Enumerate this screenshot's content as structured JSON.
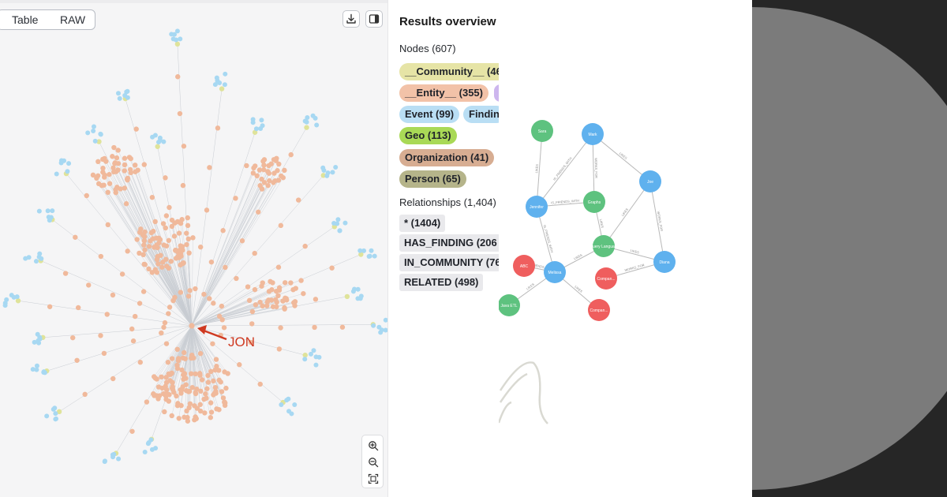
{
  "graph_view": {
    "tabs": [
      {
        "label": "Table"
      },
      {
        "label": "RAW"
      }
    ],
    "toolbar": {
      "download_icon": "download-icon",
      "side_panel_icon": "side-panel-icon"
    },
    "annotation_label": "JON",
    "zoom_controls": {
      "zoom_in_icon": "zoom-in-icon",
      "zoom_out_icon": "zoom-out-icon",
      "fit_icon": "fit-to-screen-icon"
    },
    "colors": {
      "entity": "#f0b99b",
      "community": "#dfe39a",
      "finding": "#a7d8f2",
      "edge": "#c9cdd3",
      "arrow": "#cf3a22"
    }
  },
  "results_overview": {
    "title": "Results overview",
    "nodes_label": "Nodes (607)",
    "node_pills": [
      {
        "label": "__Community__ (46",
        "color": "#e6e4a6"
      },
      {
        "label": "__Entity__ (355)",
        "color": "#f2c2a8"
      },
      {
        "label": "",
        "color": "#cdb6ee"
      },
      {
        "label": "Event (99)",
        "color": "#b9def4"
      },
      {
        "label": "Findin",
        "color": "#b9def4"
      },
      {
        "label": "Geo (113)",
        "color": "#a9d956"
      },
      {
        "label": "Organization (41)",
        "color": "#d7ad92"
      },
      {
        "label": "Person (65)",
        "color": "#b5b48a"
      }
    ],
    "relationships_label": "Relationships (1,404)",
    "relationship_pills": [
      {
        "label": "* (1404)"
      },
      {
        "label": "HAS_FINDING (206"
      },
      {
        "label": "IN_COMMUNITY (76"
      },
      {
        "label": "RELATED (498)"
      }
    ]
  },
  "inset_graph": {
    "nodes": [
      {
        "label": "Sara",
        "color": "#5ec27f"
      },
      {
        "label": "Mark",
        "color": "#5fb1ee"
      },
      {
        "label": "Joe",
        "color": "#5fb1ee"
      },
      {
        "label": "Jennifer",
        "color": "#5fb1ee"
      },
      {
        "label": "Graphs",
        "color": "#5ec27f"
      },
      {
        "label": "Query Langua...",
        "color": "#5ec27f"
      },
      {
        "label": "Diana",
        "color": "#5fb1ee"
      },
      {
        "label": "ABC",
        "color": "#ef5e5e"
      },
      {
        "label": "Melissa",
        "color": "#5fb1ee"
      },
      {
        "label": "Compan...",
        "color": "#ef5e5e"
      },
      {
        "label": "Java ETL",
        "color": "#5ec27f"
      },
      {
        "label": "Compan...",
        "color": "#ef5e5e"
      }
    ],
    "edge_labels": [
      "LIKES",
      "IS_FRIENDS_WITH",
      "WORKS_FOR",
      "LIKES",
      "IS_FRIENDS_WITH",
      "LIKES",
      "IS_FRIENDS_WITH",
      "LIKES",
      "LIKES",
      "WORKS_FOR",
      "LIKES",
      "WORKS_FOR",
      "LIKES",
      "IS_FRIENDS_WITH",
      "LIKES"
    ]
  },
  "colors": {
    "dark_background": "#262626",
    "circle": "#7b7b7b"
  }
}
